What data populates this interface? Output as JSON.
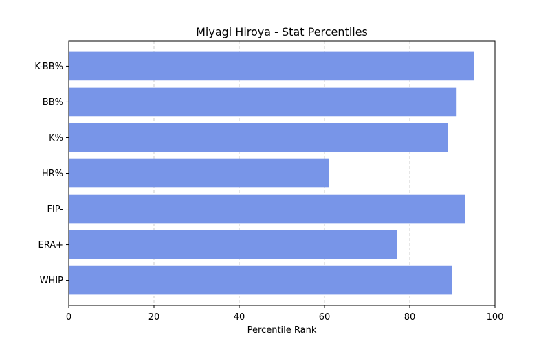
{
  "chart_data": {
    "type": "bar",
    "orientation": "horizontal",
    "title": "Miyagi Hiroya - Stat Percentiles",
    "xlabel": "Percentile Rank",
    "ylabel": "",
    "xlim": [
      0,
      100
    ],
    "xticks": [
      0,
      20,
      40,
      60,
      80,
      100
    ],
    "grid": "x-dashed",
    "bar_color": "#7895e8",
    "categories": [
      "K-BB%",
      "BB%",
      "K%",
      "HR%",
      "FIP-",
      "ERA+",
      "WHIP"
    ],
    "values": [
      95,
      91,
      89,
      61,
      93,
      77,
      90
    ]
  }
}
